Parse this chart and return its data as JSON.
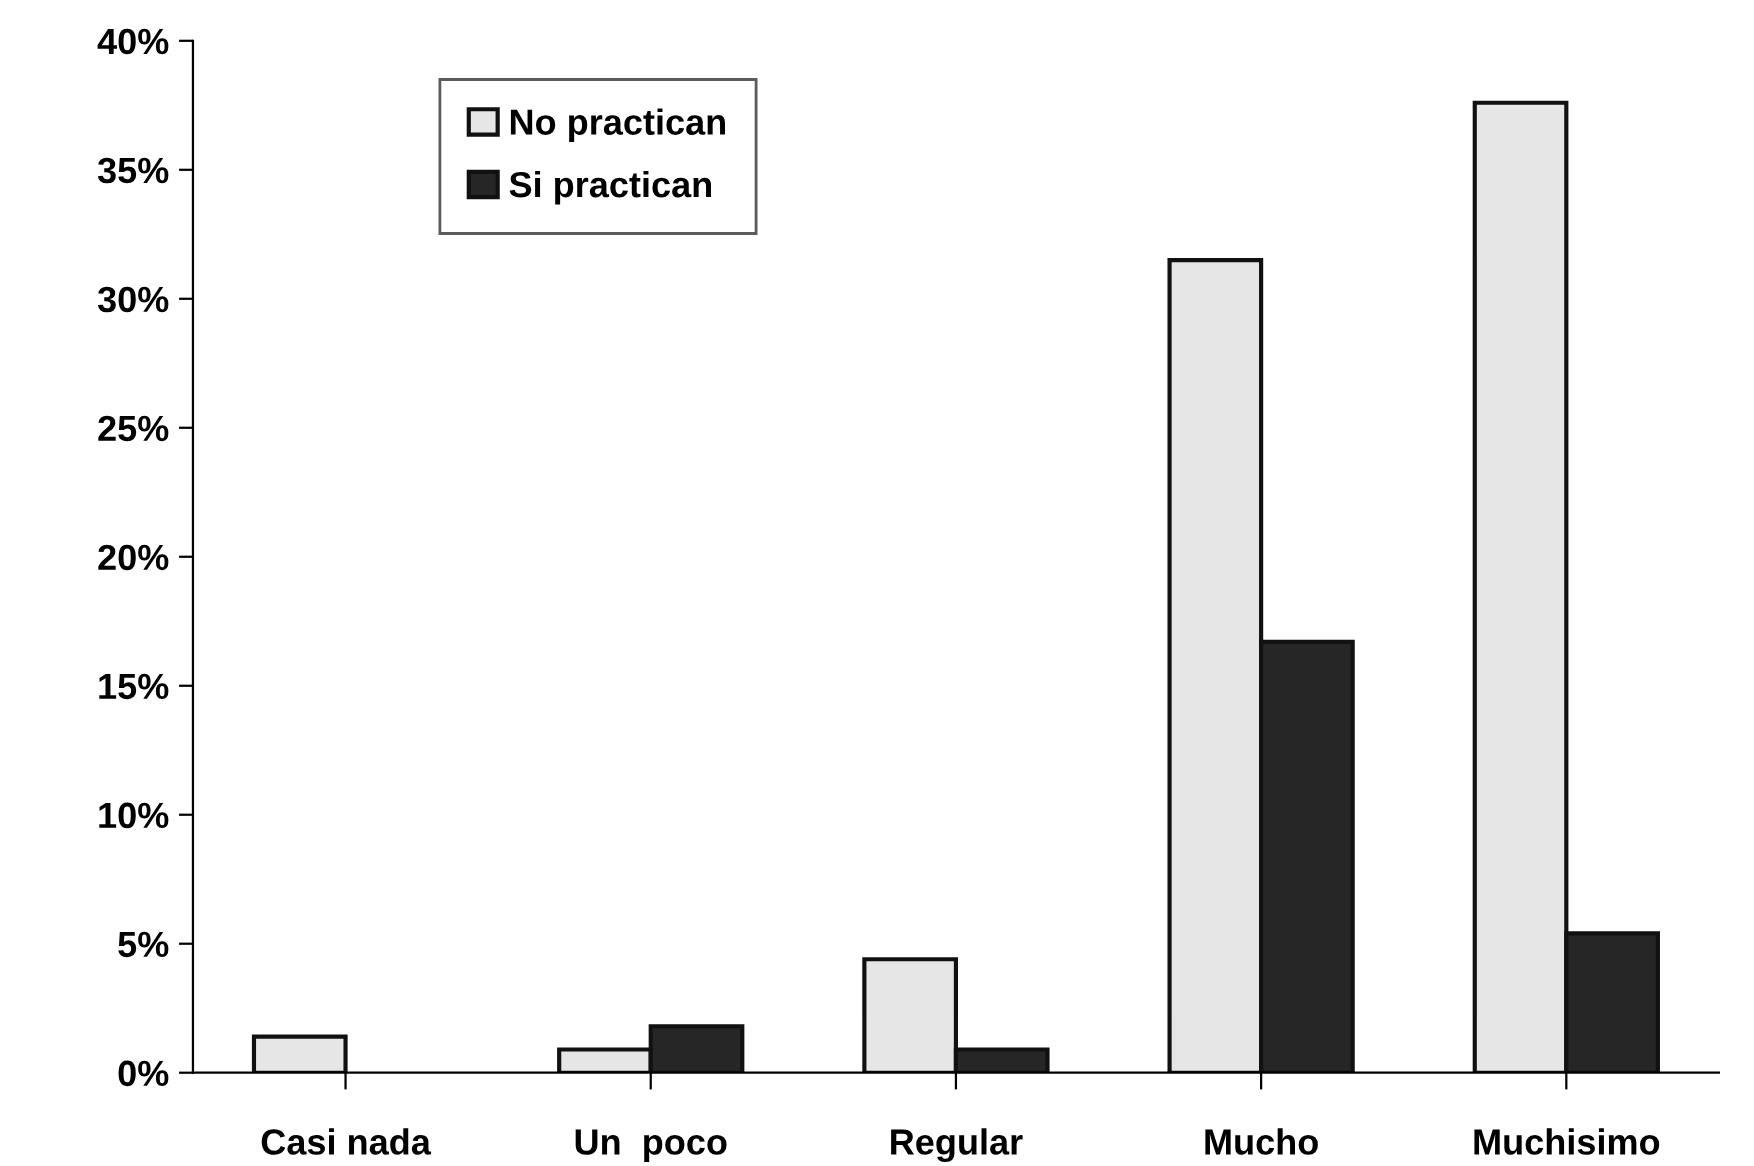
{
  "chart_data": {
    "type": "bar",
    "categories": [
      "Casi nada",
      "Un  poco",
      "Regular",
      "Mucho",
      "Muchisimo"
    ],
    "series": [
      {
        "name": "No practican",
        "color": "#e6e6e6",
        "values": [
          1.4,
          0.9,
          4.4,
          31.5,
          37.6
        ]
      },
      {
        "name": "Si practican",
        "color": "#262626",
        "values": [
          null,
          1.8,
          0.9,
          16.7,
          5.4
        ]
      }
    ],
    "ylim": [
      0,
      40
    ],
    "yticks": [
      {
        "value": 0,
        "label": "0%"
      },
      {
        "value": 5,
        "label": "5%"
      },
      {
        "value": 10,
        "label": "10%"
      },
      {
        "value": 15,
        "label": "15%"
      },
      {
        "value": 20,
        "label": "20%"
      },
      {
        "value": 25,
        "label": "25%"
      },
      {
        "value": 30,
        "label": "30%"
      },
      {
        "value": 35,
        "label": "35%"
      },
      {
        "value": 40,
        "label": "40%"
      }
    ],
    "grid": false,
    "legend": "top left"
  }
}
